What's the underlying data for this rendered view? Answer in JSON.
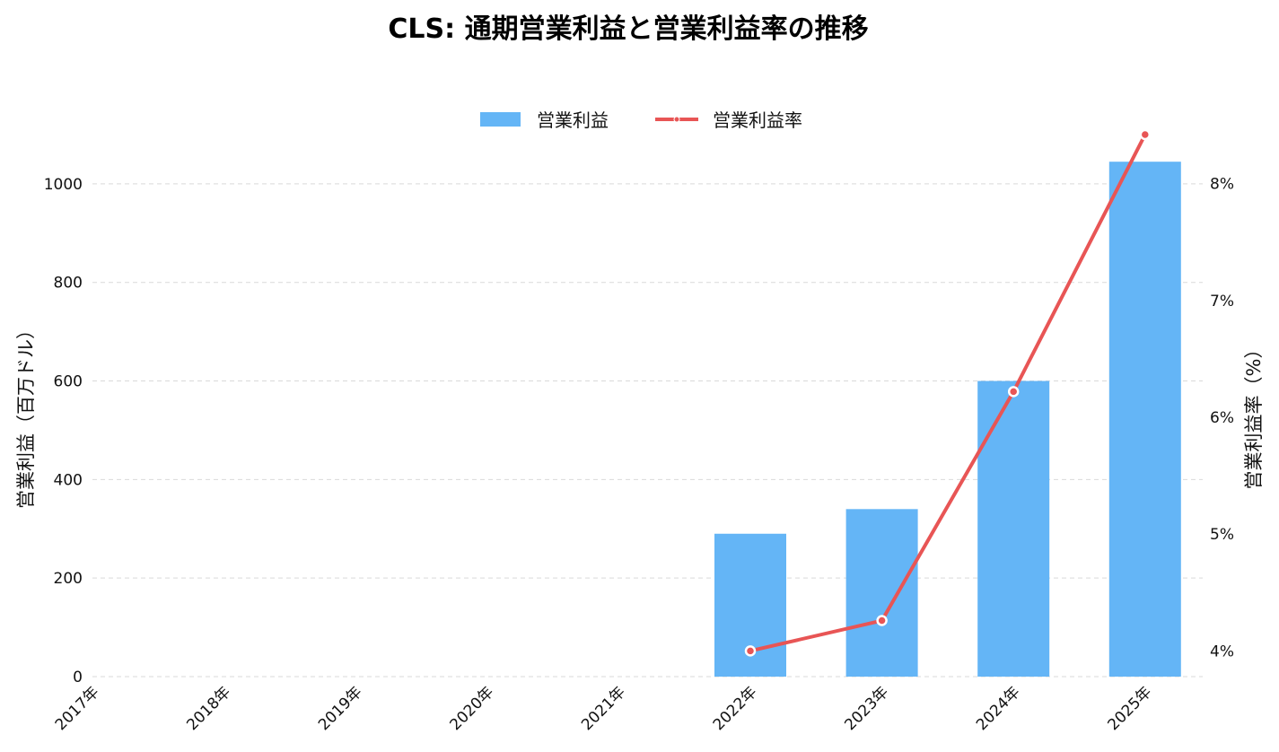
{
  "chart_data": {
    "type": "bar",
    "title": "CLS: 通期営業利益と営業利益率の推移",
    "categories": [
      "2017年",
      "2018年",
      "2019年",
      "2020年",
      "2021年",
      "2022年",
      "2023年",
      "2024年",
      "2025年"
    ],
    "series": [
      {
        "name": "営業利益",
        "type": "bar",
        "axis": "left",
        "color": "#64b5f6",
        "values": [
          null,
          null,
          null,
          null,
          null,
          290,
          340,
          600,
          1045
        ]
      },
      {
        "name": "営業利益率",
        "type": "line",
        "axis": "right",
        "color": "#e85555",
        "values": [
          null,
          null,
          null,
          null,
          null,
          4.0,
          4.26,
          6.22,
          8.42
        ]
      }
    ],
    "xlabel": "",
    "ylabel": "営業利益（百万ドル）",
    "y2label": "営業利益率（%）",
    "ylim": [
      0,
      1100
    ],
    "y2lim": [
      3.78,
      8.42
    ],
    "yticks": [
      0,
      200,
      400,
      600,
      800,
      1000
    ],
    "y2ticks": [
      4,
      5,
      6,
      7,
      8
    ],
    "y2tick_suffix": "%",
    "grid": true,
    "legend_position": "top-center"
  }
}
